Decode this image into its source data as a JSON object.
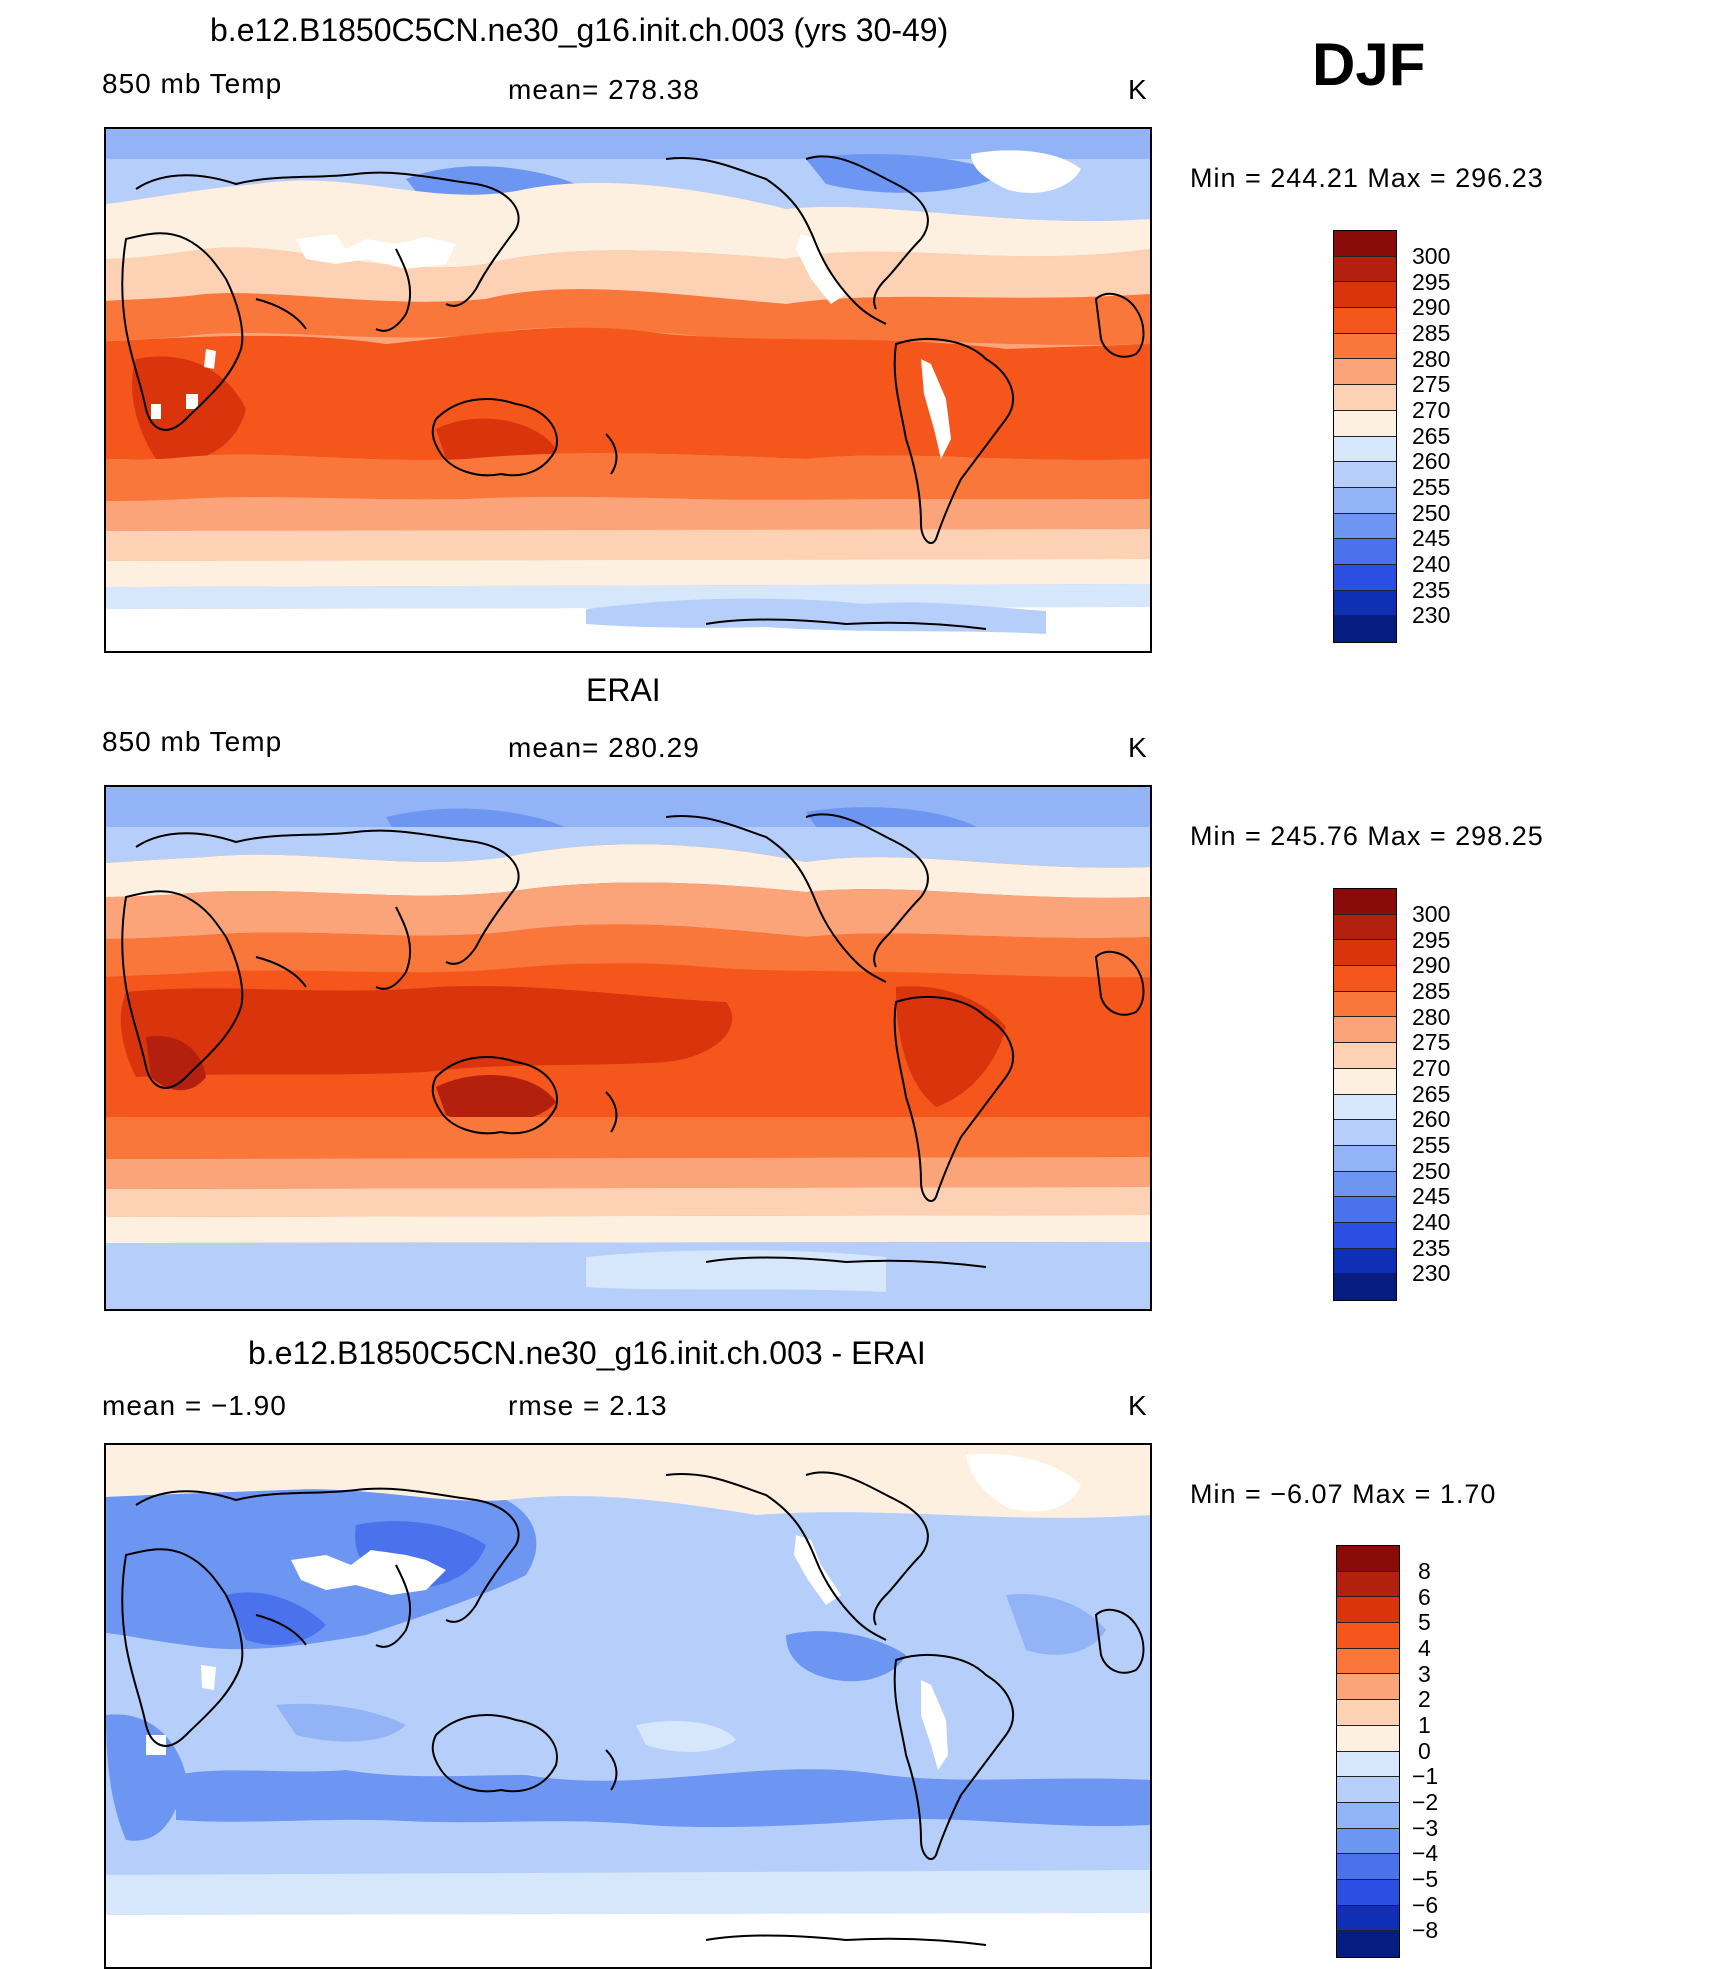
{
  "season": "DJF",
  "units": "K",
  "panels": [
    {
      "title": "b.e12.B1850C5CN.ne30_g16.init.ch.003 (yrs 30-49)",
      "left_label": "850 mb Temp",
      "center_label": "mean=  278.38",
      "right_label": "K",
      "minmax": "Min  =  244.21  Max  =  296.23",
      "colorbar_labels": [
        "300",
        "295",
        "290",
        "285",
        "280",
        "275",
        "270",
        "265",
        "260",
        "255",
        "250",
        "245",
        "240",
        "235",
        "230"
      ]
    },
    {
      "title": "ERAI",
      "left_label": "850 mb Temp",
      "center_label": "mean=  280.29",
      "right_label": "K",
      "minmax": "Min  =  245.76  Max  =  298.25",
      "colorbar_labels": [
        "300",
        "295",
        "290",
        "285",
        "280",
        "275",
        "270",
        "265",
        "260",
        "255",
        "250",
        "245",
        "240",
        "235",
        "230"
      ]
    },
    {
      "title": "b.e12.B1850C5CN.ne30_g16.init.ch.003 - ERAI",
      "left_label": "mean  =    −1.90",
      "center_label": "rmse  =     2.13",
      "right_label": "K",
      "minmax": "Min  =   −6.07  Max  =     1.70",
      "colorbar_labels": [
        "8",
        "6",
        "5",
        "4",
        "3",
        "2",
        "1",
        "0",
        "−1",
        "−2",
        "−3",
        "−4",
        "−5",
        "−6",
        "−8"
      ]
    }
  ],
  "colors": {
    "abs_scale": [
      "#8b0b0b",
      "#b3200e",
      "#d9340b",
      "#f4561c",
      "#f9773a",
      "#fba47a",
      "#fdd1b3",
      "#fef0e0",
      "#d6e6fb",
      "#b6cffa",
      "#92b3f6",
      "#6d95f2",
      "#4a72ec",
      "#2b4fe2",
      "#0f2fb5",
      "#061d80"
    ],
    "diff_scale": [
      "#8b0b0b",
      "#b3200e",
      "#d9340b",
      "#f4561c",
      "#f9773a",
      "#fba47a",
      "#fdd1b3",
      "#fef0e0",
      "#d6e6fb",
      "#b6cffa",
      "#92b3f6",
      "#6d95f2",
      "#4a72ec",
      "#2b4fe2",
      "#0f2fb5",
      "#061d80"
    ],
    "missing": "#ffffff",
    "coast": "#000000"
  }
}
